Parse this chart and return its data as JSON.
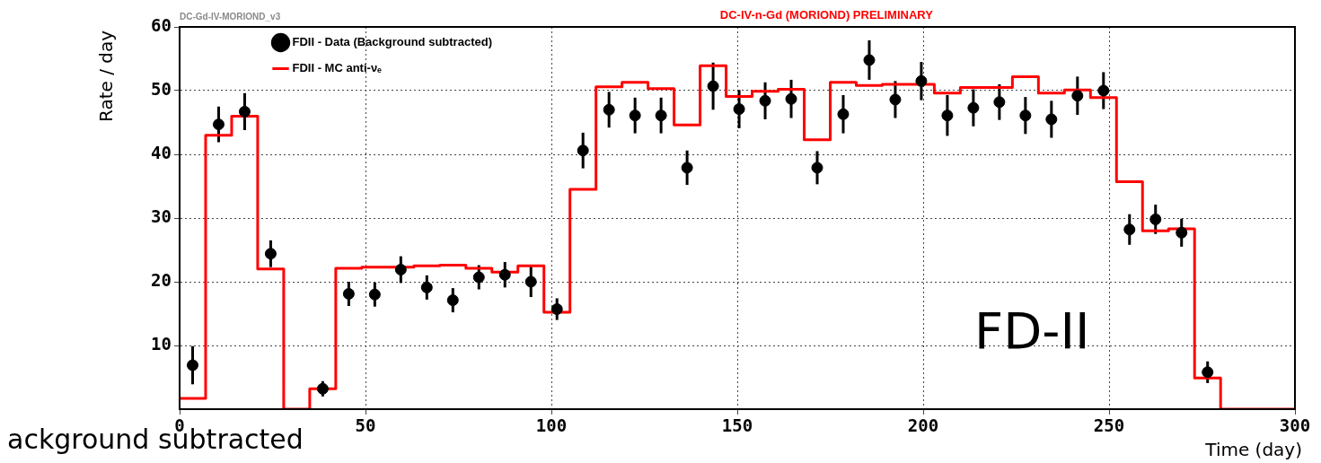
{
  "chart_data": {
    "type": "scatter",
    "title": "DC-IV-n-Gd (MORIOND) PRELIMINARY",
    "xlabel": "Time (day)",
    "ylabel": "Rate / day",
    "annotations": [
      "DC-Gd-IV-MORIOND_v3",
      "FD-II",
      "ackground subtracted"
    ],
    "series": [
      {
        "name": "FDII - Data (Background subtracted)",
        "color": "#000000",
        "marker": "circle",
        "x": [
          3.5,
          10.5,
          17.5,
          24.5,
          38.5,
          45.5,
          52.5,
          59.5,
          66.5,
          73.5,
          80.5,
          87.5,
          94.5,
          101.5,
          108.5,
          115.5,
          122.5,
          129.5,
          136.5,
          143.5,
          150.5,
          157.5,
          164.5,
          171.5,
          178.5,
          185.5,
          192.5,
          199.5,
          206.5,
          213.5,
          220.5,
          227.5,
          234.5,
          241.5,
          248.5,
          255.5,
          262.5,
          269.5,
          276.5
        ],
        "values": [
          6.9,
          44.7,
          46.7,
          24.4,
          3.2,
          18.1,
          18.0,
          21.9,
          19.1,
          17.1,
          20.7,
          21.1,
          20.0,
          15.7,
          40.6,
          47.0,
          46.1,
          46.1,
          37.9,
          50.7,
          47.1,
          48.4,
          48.7,
          37.9,
          46.3,
          54.8,
          48.6,
          51.5,
          46.1,
          47.3,
          48.2,
          46.1,
          45.5,
          49.2,
          50.0,
          28.2,
          29.8,
          27.7,
          5.8
        ],
        "errors": [
          3.0,
          2.8,
          2.9,
          2.1,
          1.2,
          1.9,
          1.9,
          2.1,
          1.9,
          1.9,
          1.9,
          2.0,
          2.4,
          1.7,
          2.8,
          2.8,
          2.8,
          2.8,
          2.7,
          3.7,
          3.0,
          2.9,
          3.0,
          2.6,
          3.0,
          3.1,
          2.9,
          3.0,
          3.2,
          2.9,
          2.8,
          2.9,
          2.9,
          3.0,
          2.9,
          2.4,
          2.3,
          2.2,
          1.7
        ]
      },
      {
        "name": "FDII - MC anti-νₑ",
        "type": "step",
        "color": "#ff0000",
        "x": [
          0,
          7,
          14,
          21,
          28,
          35,
          42,
          49,
          56,
          63,
          70,
          77,
          84,
          91,
          98,
          105,
          112,
          119,
          126,
          133,
          140,
          147,
          154,
          161,
          168,
          175,
          182,
          189,
          196,
          203,
          210,
          217,
          224,
          231,
          238,
          245,
          252,
          259,
          266,
          273,
          280,
          300
        ],
        "values": [
          1.7,
          43.0,
          46.0,
          22.0,
          0,
          3.2,
          22.1,
          22.3,
          22.3,
          22.5,
          22.6,
          22.1,
          21.5,
          22.5,
          15.2,
          34.5,
          50.6,
          51.3,
          50.3,
          44.6,
          53.9,
          49.1,
          49.9,
          50.2,
          42.3,
          51.3,
          50.8,
          51.0,
          51.0,
          49.6,
          50.5,
          50.5,
          52.2,
          49.6,
          50.1,
          48.9,
          35.7,
          28.0,
          28.3,
          4.9,
          0,
          0
        ]
      }
    ],
    "xlim": [
      0,
      300
    ],
    "xticks": [
      0,
      50,
      100,
      150,
      200,
      250,
      300
    ],
    "ylim": [
      0,
      60
    ],
    "yticks": [
      10,
      20,
      30,
      40,
      50,
      60
    ],
    "grid": true,
    "legend": "top left"
  }
}
